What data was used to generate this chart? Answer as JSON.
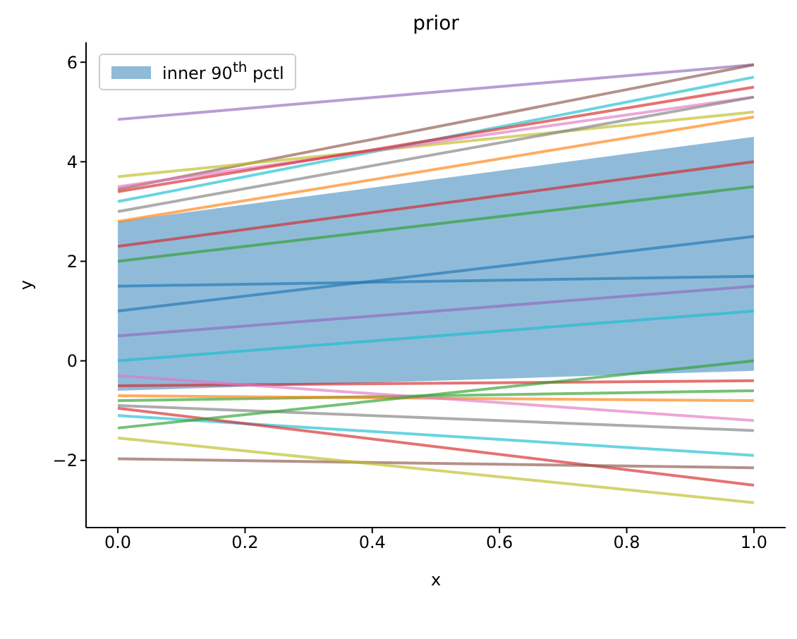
{
  "chart_data": {
    "type": "line",
    "title": "prior",
    "xlabel": "x",
    "ylabel": "y",
    "x": [
      0,
      1
    ],
    "xlim": [
      -0.05,
      1.05
    ],
    "ylim": [
      -3.35,
      6.4
    ],
    "xticks": [
      {
        "value": 0,
        "label": "0.0"
      },
      {
        "value": 0.2,
        "label": "0.2"
      },
      {
        "value": 0.4,
        "label": "0.4"
      },
      {
        "value": 0.6,
        "label": "0.6"
      },
      {
        "value": 0.8,
        "label": "0.8"
      },
      {
        "value": 1,
        "label": "1.0"
      }
    ],
    "yticks": [
      {
        "value": -2,
        "label": "−2"
      },
      0,
      2,
      4,
      6
    ],
    "grid": false,
    "legend": "top left",
    "marker": "none",
    "line_style": "solid",
    "series": [
      {
        "name": "inner 90$^{th}$ pctl",
        "color": "#1f77b4",
        "values": [
          null,
          null
        ],
        "lower": [
          -0.6,
          -0.2
        ],
        "upper": [
          2.8,
          4.5
        ]
      },
      {
        "color": "#9467bd",
        "values": [
          4.85,
          5.95
        ]
      },
      {
        "color": "#8c564b",
        "values": [
          3.45,
          5.95
        ]
      },
      {
        "color": "#bcbd22",
        "values": [
          3.7,
          5.0
        ]
      },
      {
        "color": "#17becf",
        "values": [
          3.2,
          5.7
        ]
      },
      {
        "color": "#e377c2",
        "values": [
          3.5,
          5.3
        ]
      },
      {
        "color": "#ff7f0e",
        "values": [
          2.8,
          4.9
        ]
      },
      {
        "color": "#7f7f7f",
        "values": [
          3.0,
          5.3
        ]
      },
      {
        "color": "#d62728",
        "values": [
          3.4,
          5.5
        ]
      },
      {
        "color": "#2ca02c",
        "values": [
          2.0,
          3.5
        ]
      },
      {
        "color": "#1f77b4",
        "values": [
          1.0,
          2.5
        ]
      },
      {
        "color": "#9467bd",
        "values": [
          0.5,
          1.5
        ]
      },
      {
        "color": "#d62728",
        "values": [
          2.3,
          4.0
        ]
      },
      {
        "color": "#17becf",
        "values": [
          0.0,
          1.0
        ]
      },
      {
        "color": "#1f77b4",
        "values": [
          1.5,
          1.7
        ]
      },
      {
        "color": "#d62728",
        "values": [
          -0.5,
          -0.4
        ]
      },
      {
        "color": "#2ca02c",
        "values": [
          -0.8,
          -0.6
        ]
      },
      {
        "color": "#ff7f0e",
        "values": [
          -0.7,
          -0.8
        ]
      },
      {
        "color": "#e377c2",
        "values": [
          -0.3,
          -1.2
        ]
      },
      {
        "color": "#7f7f7f",
        "values": [
          -0.9,
          -1.4
        ]
      },
      {
        "color": "#17becf",
        "values": [
          -1.1,
          -1.9
        ]
      },
      {
        "color": "#d62728",
        "values": [
          -0.95,
          -2.5
        ]
      },
      {
        "color": "#8c564b",
        "values": [
          -1.97,
          -2.15
        ]
      },
      {
        "color": "#bcbd22",
        "values": [
          -1.55,
          -2.85
        ]
      },
      {
        "color": "#2ca02c",
        "values": [
          -1.35,
          0.0
        ]
      }
    ]
  }
}
